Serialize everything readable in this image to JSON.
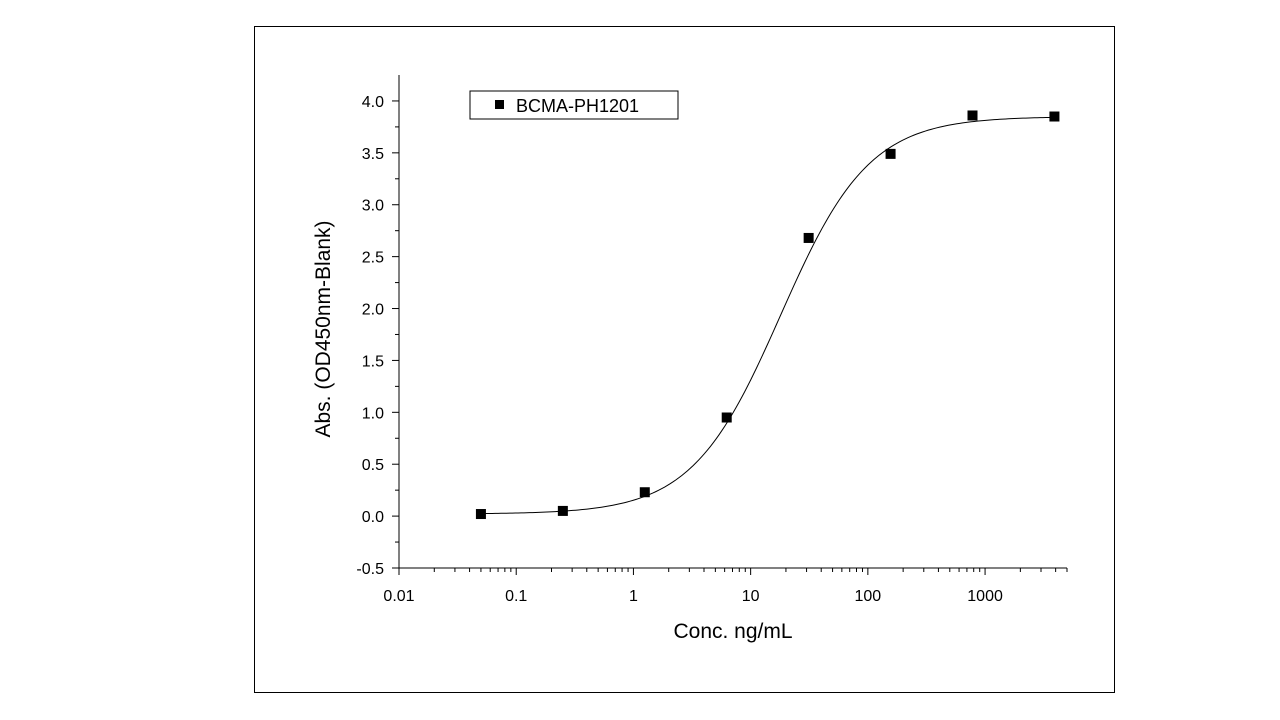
{
  "chart_data": {
    "type": "scatter",
    "title": "",
    "xlabel": "Conc. ng/mL",
    "ylabel": "Abs. (OD450nm-Blank)",
    "x_scale": "log",
    "xlim": [
      0.01,
      5000
    ],
    "ylim": [
      -0.5,
      4.25
    ],
    "x_ticks": [
      0.01,
      0.1,
      1,
      10,
      100,
      1000
    ],
    "x_tick_labels": [
      "0.01",
      "0.1",
      "1",
      "10",
      "100",
      "1000"
    ],
    "y_ticks": [
      -0.5,
      0.0,
      0.5,
      1.0,
      1.5,
      2.0,
      2.5,
      3.0,
      3.5,
      4.0
    ],
    "y_tick_labels": [
      "-0.5",
      "0.0",
      "0.5",
      "1.0",
      "1.5",
      "2.0",
      "2.5",
      "3.0",
      "3.5",
      "4.0"
    ],
    "grid": false,
    "legend_position": "top-left",
    "series": [
      {
        "name": "BCMA-PH1201",
        "marker": "square",
        "color": "#000000",
        "x": [
          0.05,
          0.25,
          1.25,
          6.25,
          31.25,
          156.25,
          781.25,
          3906.25
        ],
        "y": [
          0.02,
          0.05,
          0.23,
          0.95,
          2.68,
          3.49,
          3.86,
          3.85
        ]
      }
    ],
    "fit_curve": {
      "type": "4PL",
      "color": "#000000",
      "x_range": [
        0.05,
        3906.25
      ]
    }
  }
}
